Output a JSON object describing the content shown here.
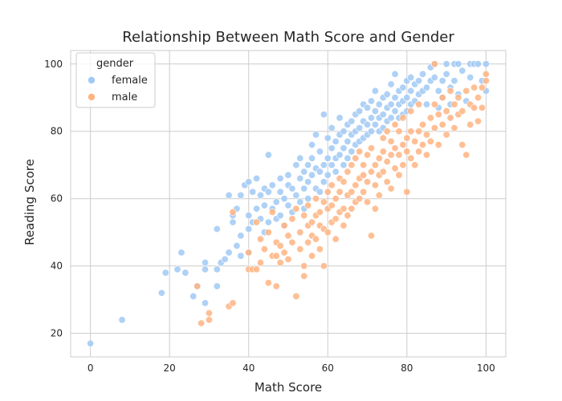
{
  "chart_data": {
    "type": "scatter",
    "title": "Relationship Between Math Score and Gender",
    "xlabel": "Math Score",
    "ylabel": "Reading Score",
    "xlim": [
      -5,
      105
    ],
    "ylim": [
      13,
      104
    ],
    "xticks": [
      0,
      20,
      40,
      60,
      80,
      100
    ],
    "yticks": [
      20,
      40,
      60,
      80,
      100
    ],
    "grid": true,
    "legend": {
      "title": "gender",
      "position": "upper-left"
    },
    "colors": {
      "female": "#a1c9f4",
      "male": "#ffb482",
      "grid": "#cccccc",
      "frame": "#cccccc"
    },
    "series": [
      {
        "name": "female",
        "points": [
          [
            0,
            17
          ],
          [
            8,
            24
          ],
          [
            18,
            32
          ],
          [
            19,
            38
          ],
          [
            22,
            39
          ],
          [
            23,
            44
          ],
          [
            24,
            38
          ],
          [
            26,
            31
          ],
          [
            27,
            34
          ],
          [
            29,
            41
          ],
          [
            29,
            39
          ],
          [
            29,
            29
          ],
          [
            32,
            34
          ],
          [
            32,
            39
          ],
          [
            32,
            51
          ],
          [
            33,
            41
          ],
          [
            34,
            42
          ],
          [
            35,
            61
          ],
          [
            35,
            44
          ],
          [
            36,
            53
          ],
          [
            36,
            55
          ],
          [
            37,
            57
          ],
          [
            37,
            46
          ],
          [
            38,
            49
          ],
          [
            38,
            43
          ],
          [
            38,
            61
          ],
          [
            39,
            64
          ],
          [
            40,
            65
          ],
          [
            40,
            55
          ],
          [
            40,
            51
          ],
          [
            40,
            44
          ],
          [
            41,
            62
          ],
          [
            41,
            53
          ],
          [
            42,
            66
          ],
          [
            42,
            57
          ],
          [
            43,
            61
          ],
          [
            43,
            54
          ],
          [
            44,
            63
          ],
          [
            44,
            58
          ],
          [
            44,
            50
          ],
          [
            45,
            62
          ],
          [
            45,
            73
          ],
          [
            45,
            53
          ],
          [
            46,
            64
          ],
          [
            46,
            57
          ],
          [
            47,
            59
          ],
          [
            47,
            54
          ],
          [
            48,
            62
          ],
          [
            48,
            55
          ],
          [
            48,
            66
          ],
          [
            49,
            60
          ],
          [
            49,
            52
          ],
          [
            50,
            64
          ],
          [
            50,
            58
          ],
          [
            50,
            67
          ],
          [
            51,
            63
          ],
          [
            51,
            56
          ],
          [
            52,
            70
          ],
          [
            52,
            61
          ],
          [
            53,
            66
          ],
          [
            53,
            59
          ],
          [
            53,
            72
          ],
          [
            54,
            68
          ],
          [
            54,
            63
          ],
          [
            54,
            57
          ],
          [
            55,
            70
          ],
          [
            55,
            65
          ],
          [
            55,
            60
          ],
          [
            56,
            72
          ],
          [
            56,
            67
          ],
          [
            56,
            76
          ],
          [
            57,
            69
          ],
          [
            57,
            63
          ],
          [
            57,
            79
          ],
          [
            58,
            74
          ],
          [
            58,
            68
          ],
          [
            58,
            62
          ],
          [
            59,
            70
          ],
          [
            59,
            65
          ],
          [
            59,
            85
          ],
          [
            60,
            72
          ],
          [
            60,
            67
          ],
          [
            60,
            78
          ],
          [
            61,
            75
          ],
          [
            61,
            70
          ],
          [
            61,
            81
          ],
          [
            62,
            77
          ],
          [
            62,
            72
          ],
          [
            62,
            68
          ],
          [
            63,
            79
          ],
          [
            63,
            73
          ],
          [
            63,
            84
          ],
          [
            64,
            80
          ],
          [
            64,
            75
          ],
          [
            64,
            70
          ],
          [
            65,
            82
          ],
          [
            65,
            77
          ],
          [
            65,
            72
          ],
          [
            66,
            83
          ],
          [
            66,
            79
          ],
          [
            66,
            74
          ],
          [
            67,
            85
          ],
          [
            67,
            80
          ],
          [
            67,
            76
          ],
          [
            68,
            86
          ],
          [
            68,
            81
          ],
          [
            68,
            77
          ],
          [
            69,
            88
          ],
          [
            69,
            83
          ],
          [
            69,
            78
          ],
          [
            70,
            87
          ],
          [
            70,
            82
          ],
          [
            70,
            79
          ],
          [
            71,
            89
          ],
          [
            71,
            84
          ],
          [
            71,
            80
          ],
          [
            72,
            86
          ],
          [
            72,
            82
          ],
          [
            72,
            92
          ],
          [
            73,
            88
          ],
          [
            73,
            84
          ],
          [
            73,
            80
          ],
          [
            74,
            90
          ],
          [
            74,
            85
          ],
          [
            74,
            81
          ],
          [
            75,
            91
          ],
          [
            75,
            87
          ],
          [
            75,
            83
          ],
          [
            76,
            94
          ],
          [
            76,
            88
          ],
          [
            76,
            84
          ],
          [
            77,
            90
          ],
          [
            77,
            86
          ],
          [
            77,
            97
          ],
          [
            78,
            92
          ],
          [
            78,
            88
          ],
          [
            78,
            84
          ],
          [
            79,
            93
          ],
          [
            79,
            89
          ],
          [
            79,
            85
          ],
          [
            80,
            95
          ],
          [
            80,
            90
          ],
          [
            80,
            86
          ],
          [
            81,
            96
          ],
          [
            81,
            92
          ],
          [
            81,
            88
          ],
          [
            82,
            94
          ],
          [
            82,
            89
          ],
          [
            83,
            95
          ],
          [
            83,
            91
          ],
          [
            84,
            97
          ],
          [
            84,
            92
          ],
          [
            85,
            93
          ],
          [
            85,
            88
          ],
          [
            86,
            99
          ],
          [
            86,
            95
          ],
          [
            87,
            100
          ],
          [
            87,
            96
          ],
          [
            88,
            92
          ],
          [
            88,
            87
          ],
          [
            89,
            95
          ],
          [
            89,
            90
          ],
          [
            90,
            97
          ],
          [
            90,
            100
          ],
          [
            91,
            93
          ],
          [
            91,
            88
          ],
          [
            92,
            100
          ],
          [
            92,
            95
          ],
          [
            93,
            100
          ],
          [
            93,
            91
          ],
          [
            94,
            98
          ],
          [
            95,
            89
          ],
          [
            96,
            100
          ],
          [
            96,
            96
          ],
          [
            97,
            100
          ],
          [
            98,
            100
          ],
          [
            99,
            95
          ],
          [
            100,
            100
          ],
          [
            100,
            92
          ]
        ]
      },
      {
        "name": "male",
        "points": [
          [
            27,
            34
          ],
          [
            28,
            23
          ],
          [
            30,
            24
          ],
          [
            30,
            26
          ],
          [
            35,
            28
          ],
          [
            36,
            29
          ],
          [
            36,
            56
          ],
          [
            40,
            39
          ],
          [
            40,
            44
          ],
          [
            41,
            39
          ],
          [
            42,
            39
          ],
          [
            42,
            53
          ],
          [
            43,
            48
          ],
          [
            43,
            41
          ],
          [
            44,
            45
          ],
          [
            45,
            50
          ],
          [
            45,
            35
          ],
          [
            46,
            43
          ],
          [
            46,
            56
          ],
          [
            47,
            47
          ],
          [
            47,
            34
          ],
          [
            47,
            43
          ],
          [
            48,
            46
          ],
          [
            48,
            41
          ],
          [
            49,
            52
          ],
          [
            49,
            44
          ],
          [
            50,
            49
          ],
          [
            50,
            42
          ],
          [
            51,
            54
          ],
          [
            51,
            47
          ],
          [
            52,
            31
          ],
          [
            52,
            57
          ],
          [
            53,
            50
          ],
          [
            53,
            45
          ],
          [
            54,
            55
          ],
          [
            54,
            40
          ],
          [
            54,
            37
          ],
          [
            55,
            52
          ],
          [
            55,
            47
          ],
          [
            55,
            58
          ],
          [
            56,
            53
          ],
          [
            56,
            43
          ],
          [
            56,
            49
          ],
          [
            57,
            55
          ],
          [
            57,
            48
          ],
          [
            57,
            60
          ],
          [
            58,
            56
          ],
          [
            58,
            45
          ],
          [
            58,
            52
          ],
          [
            59,
            59
          ],
          [
            59,
            51
          ],
          [
            59,
            40
          ],
          [
            60,
            57
          ],
          [
            60,
            50
          ],
          [
            60,
            62
          ],
          [
            61,
            58
          ],
          [
            61,
            53
          ],
          [
            61,
            64
          ],
          [
            62,
            60
          ],
          [
            62,
            54
          ],
          [
            62,
            48
          ],
          [
            63,
            62
          ],
          [
            63,
            56
          ],
          [
            63,
            66
          ],
          [
            64,
            57
          ],
          [
            64,
            52
          ],
          [
            64,
            65
          ],
          [
            65,
            61
          ],
          [
            65,
            55
          ],
          [
            65,
            68
          ],
          [
            66,
            62
          ],
          [
            66,
            57
          ],
          [
            66,
            70
          ],
          [
            67,
            64
          ],
          [
            67,
            59
          ],
          [
            67,
            72
          ],
          [
            68,
            66
          ],
          [
            68,
            60
          ],
          [
            68,
            74
          ],
          [
            69,
            67
          ],
          [
            69,
            62
          ],
          [
            69,
            70
          ],
          [
            70,
            65
          ],
          [
            70,
            59
          ],
          [
            70,
            73
          ],
          [
            71,
            68
          ],
          [
            71,
            49
          ],
          [
            71,
            75
          ],
          [
            72,
            70
          ],
          [
            72,
            57
          ],
          [
            72,
            64
          ],
          [
            73,
            72
          ],
          [
            73,
            67
          ],
          [
            73,
            61
          ],
          [
            74,
            74
          ],
          [
            74,
            68
          ],
          [
            74,
            78
          ],
          [
            75,
            71
          ],
          [
            75,
            65
          ],
          [
            75,
            80
          ],
          [
            76,
            73
          ],
          [
            76,
            63
          ],
          [
            76,
            77
          ],
          [
            77,
            75
          ],
          [
            77,
            69
          ],
          [
            77,
            82
          ],
          [
            78,
            73
          ],
          [
            78,
            67
          ],
          [
            78,
            80
          ],
          [
            79,
            76
          ],
          [
            79,
            70
          ],
          [
            79,
            84
          ],
          [
            80,
            74
          ],
          [
            80,
            62
          ],
          [
            80,
            78
          ],
          [
            81,
            80
          ],
          [
            81,
            72
          ],
          [
            81,
            86
          ],
          [
            82,
            77
          ],
          [
            82,
            70
          ],
          [
            83,
            80
          ],
          [
            83,
            74
          ],
          [
            83,
            88
          ],
          [
            84,
            82
          ],
          [
            84,
            76
          ],
          [
            85,
            79
          ],
          [
            85,
            73
          ],
          [
            86,
            84
          ],
          [
            86,
            77
          ],
          [
            87,
            88
          ],
          [
            87,
            81
          ],
          [
            87,
            100
          ],
          [
            88,
            85
          ],
          [
            88,
            76
          ],
          [
            89,
            90
          ],
          [
            89,
            82
          ],
          [
            90,
            86
          ],
          [
            90,
            79
          ],
          [
            91,
            92
          ],
          [
            91,
            84
          ],
          [
            92,
            88
          ],
          [
            92,
            81
          ],
          [
            93,
            90
          ],
          [
            93,
            85
          ],
          [
            94,
            86
          ],
          [
            94,
            76
          ],
          [
            95,
            92
          ],
          [
            95,
            73
          ],
          [
            96,
            88
          ],
          [
            96,
            82
          ],
          [
            97,
            93
          ],
          [
            97,
            87
          ],
          [
            98,
            90
          ],
          [
            98,
            83
          ],
          [
            99,
            93
          ],
          [
            99,
            87
          ],
          [
            100,
            97
          ],
          [
            100,
            95
          ]
        ]
      }
    ]
  }
}
